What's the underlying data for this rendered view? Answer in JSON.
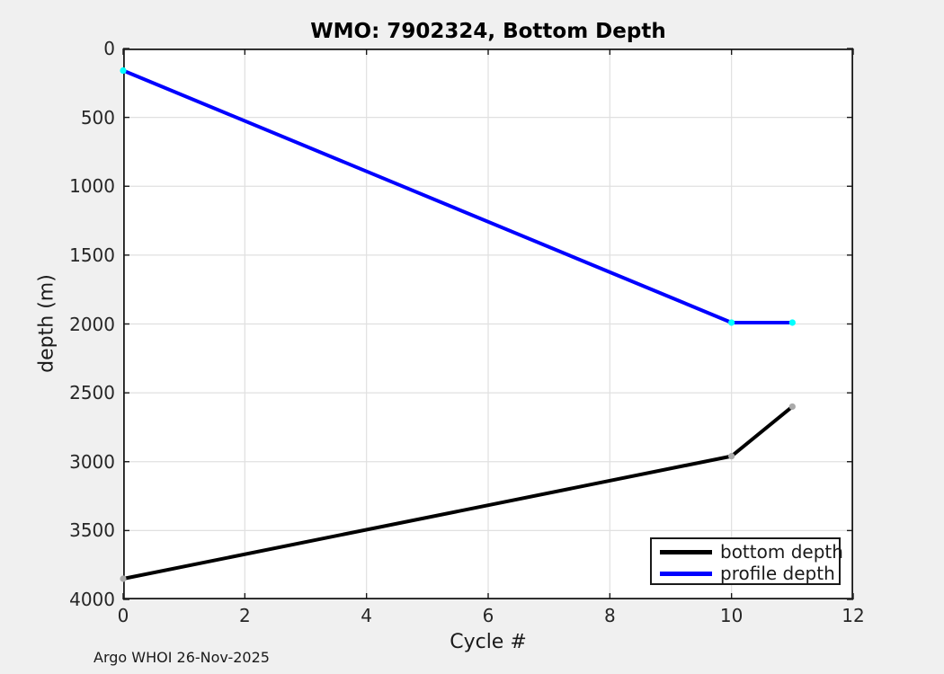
{
  "figure": {
    "background": "#F0F0F0",
    "footer": "Argo WHOI 26-Nov-2025"
  },
  "chart_data": {
    "type": "line",
    "title": "WMO: 7902324, Bottom Depth",
    "xlabel": "Cycle #",
    "ylabel": "depth (m)",
    "xlim": [
      0,
      12
    ],
    "ylim": [
      0,
      4000
    ],
    "y_axis_reversed": true,
    "grid": true,
    "legend_position": "bottom-right",
    "xticks": [
      0,
      2,
      4,
      6,
      8,
      10,
      12
    ],
    "yticks": [
      0,
      500,
      1000,
      1500,
      2000,
      2500,
      3000,
      3500,
      4000
    ],
    "series": [
      {
        "name": "bottom depth",
        "color": "#000000",
        "marker_color": "#AAAAAA",
        "x": [
          0,
          10,
          11
        ],
        "y": [
          3850,
          2960,
          2600
        ]
      },
      {
        "name": "profile depth",
        "color": "#0000FF",
        "marker_color": "#00FFFF",
        "x": [
          0,
          10,
          11
        ],
        "y": [
          160,
          1990,
          1990
        ]
      }
    ],
    "colors": {
      "grid": "#E0E0E0",
      "axis": "#1A1A1A",
      "tick_label": "#262626",
      "plot_bg": "#FFFFFF"
    }
  }
}
